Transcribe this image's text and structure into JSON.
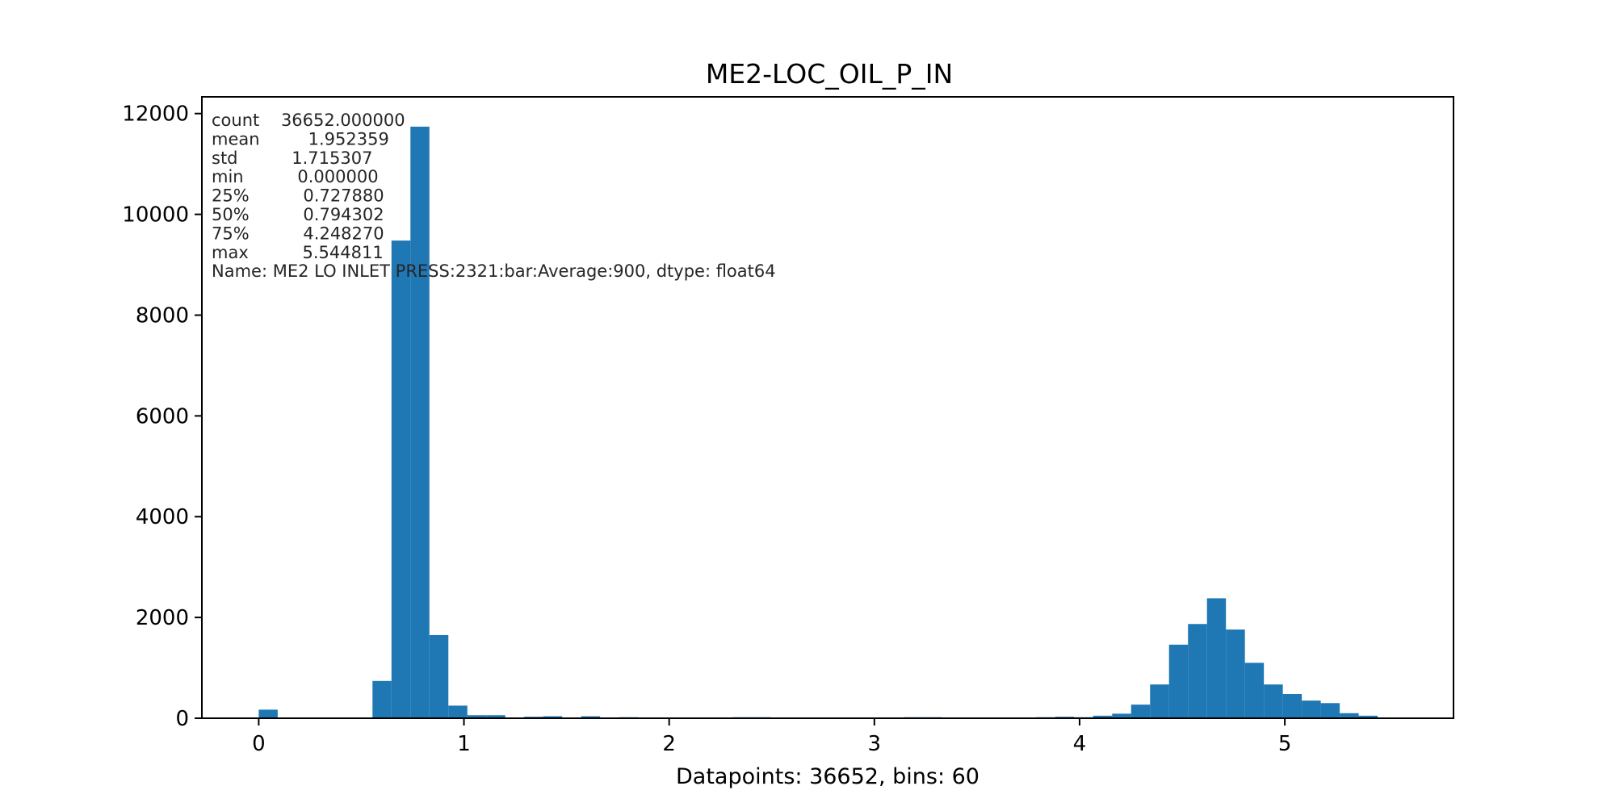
{
  "chart_data": {
    "type": "bar",
    "title": "ME2-LOC_OIL_P_IN",
    "xlabel": "Datapoints: 36652, bins: 60",
    "ylabel": "",
    "xlim": [
      -0.277,
      5.822
    ],
    "ylim": [
      0,
      12332
    ],
    "x_ticks": [
      0,
      1,
      2,
      3,
      4,
      5
    ],
    "y_ticks": [
      0,
      2000,
      4000,
      6000,
      8000,
      10000,
      12000
    ],
    "grid": false,
    "bar_color": "#1f77b4",
    "bin_start": 0.0,
    "bin_width": 0.0924135,
    "values": [
      170,
      0,
      0,
      0,
      0,
      0,
      740,
      9480,
      11740,
      1650,
      250,
      60,
      60,
      10,
      30,
      40,
      10,
      40,
      10,
      20,
      10,
      10,
      10,
      10,
      10,
      20,
      20,
      10,
      10,
      10,
      15,
      10,
      10,
      10,
      20,
      20,
      10,
      10,
      15,
      10,
      10,
      20,
      30,
      20,
      50,
      90,
      270,
      670,
      1460,
      1870,
      2380,
      1760,
      1100,
      670,
      480,
      350,
      300,
      100,
      50,
      0
    ],
    "stats_text": [
      "count    36652.000000",
      "mean         1.952359",
      "std          1.715307",
      "min          0.000000",
      "25%          0.727880",
      "50%          0.794302",
      "75%          4.248270",
      "max          5.544811",
      "Name: ME2 LO INLET PRESS:2321:bar:Average:900, dtype: float64"
    ]
  }
}
